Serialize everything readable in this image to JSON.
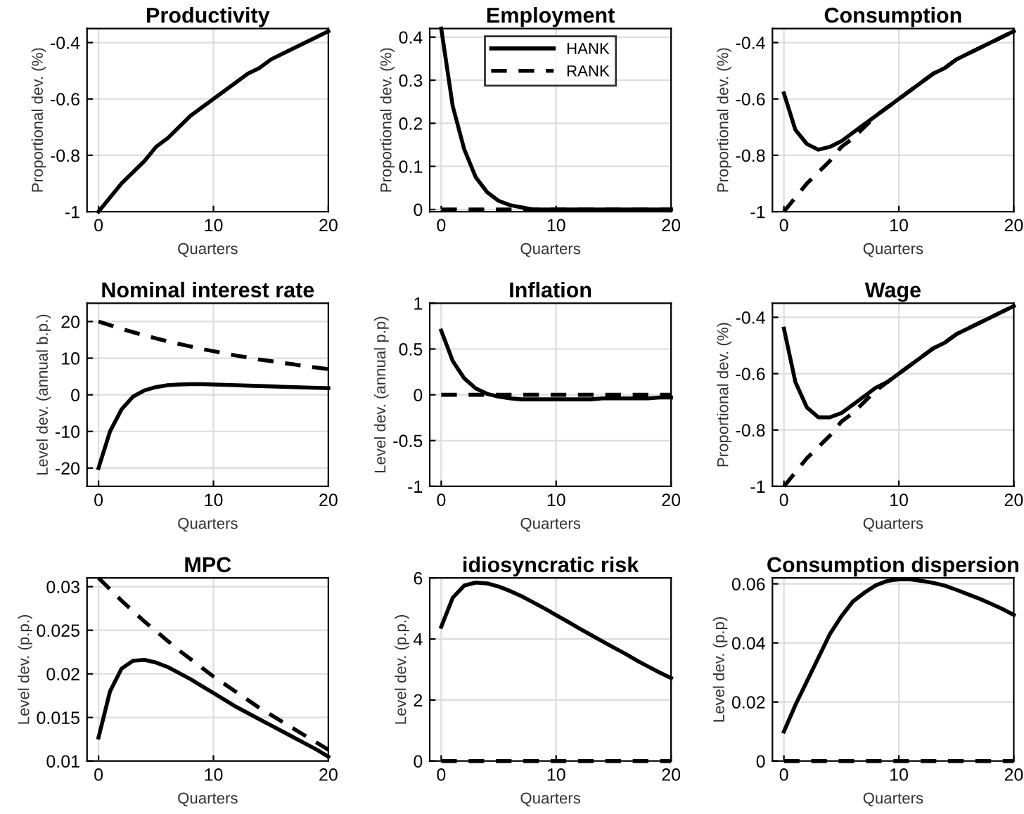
{
  "chart_data": [
    {
      "type": "line",
      "title": "Productivity",
      "xlabel": "Quarters",
      "ylabel": "Proportional dev. (%)",
      "x": [
        0,
        1,
        2,
        3,
        4,
        5,
        6,
        7,
        8,
        9,
        10,
        11,
        12,
        13,
        14,
        15,
        16,
        17,
        18,
        19,
        20
      ],
      "xlim": [
        -1,
        20
      ],
      "xticks": [
        0,
        10,
        20
      ],
      "ylim": [
        -1,
        -0.35
      ],
      "yticks": [
        -1,
        -0.8,
        -0.6,
        -0.4
      ],
      "grid": true,
      "series": [
        {
          "color": "#000000",
          "line_style": "solid",
          "values": [
            -1,
            -0.95,
            -0.9,
            -0.86,
            -0.82,
            -0.77,
            -0.74,
            -0.7,
            -0.66,
            -0.63,
            -0.6,
            -0.57,
            -0.54,
            -0.51,
            -0.49,
            -0.46,
            -0.44,
            -0.42,
            -0.4,
            -0.38,
            -0.36
          ]
        }
      ]
    },
    {
      "type": "line",
      "title": "Employment",
      "xlabel": "Quarters",
      "ylabel": "Proportional dev. (%)",
      "x": [
        0,
        1,
        2,
        3,
        4,
        5,
        6,
        7,
        8,
        9,
        10,
        11,
        12,
        13,
        14,
        15,
        16,
        17,
        18,
        19,
        20
      ],
      "xlim": [
        -1,
        20
      ],
      "xticks": [
        0,
        10,
        20
      ],
      "ylim": [
        -0.005,
        0.42
      ],
      "yticks": [
        0,
        0.1,
        0.2,
        0.3,
        0.4
      ],
      "grid": true,
      "legend": "top",
      "series": [
        {
          "name": "HANK",
          "color": "#000000",
          "line_style": "solid",
          "values": [
            0.42,
            0.24,
            0.14,
            0.075,
            0.04,
            0.02,
            0.01,
            0.005,
            0,
            0,
            0,
            0,
            0,
            0,
            0,
            0,
            0,
            0,
            0,
            0,
            0
          ]
        },
        {
          "name": "RANK",
          "color": "#000000",
          "line_style": "dashed",
          "values": [
            0,
            0,
            0,
            0,
            0,
            0,
            0,
            0,
            0,
            0,
            0,
            0,
            0,
            0,
            0,
            0,
            0,
            0,
            0,
            0,
            0
          ]
        }
      ]
    },
    {
      "type": "line",
      "title": "Consumption",
      "xlabel": "Quarters",
      "ylabel": "Proportional dev. (%)",
      "x": [
        0,
        1,
        2,
        3,
        4,
        5,
        6,
        7,
        8,
        9,
        10,
        11,
        12,
        13,
        14,
        15,
        16,
        17,
        18,
        19,
        20
      ],
      "xlim": [
        -1,
        20
      ],
      "xticks": [
        0,
        10,
        20
      ],
      "ylim": [
        -1,
        -0.35
      ],
      "yticks": [
        -1,
        -0.8,
        -0.6,
        -0.4
      ],
      "grid": true,
      "series": [
        {
          "color": "#000000",
          "line_style": "solid",
          "values": [
            -0.58,
            -0.71,
            -0.76,
            -0.78,
            -0.77,
            -0.75,
            -0.72,
            -0.69,
            -0.66,
            -0.63,
            -0.6,
            -0.57,
            -0.54,
            -0.51,
            -0.49,
            -0.46,
            -0.44,
            -0.42,
            -0.4,
            -0.38,
            -0.36
          ]
        },
        {
          "color": "#000000",
          "line_style": "dashed",
          "values": [
            -1,
            -0.95,
            -0.9,
            -0.86,
            -0.82,
            -0.77,
            -0.74,
            -0.7,
            -0.66,
            -0.63,
            -0.6,
            -0.57,
            -0.54,
            -0.51,
            -0.49,
            -0.46,
            -0.44,
            -0.42,
            -0.4,
            -0.38,
            -0.36
          ]
        }
      ]
    },
    {
      "type": "line",
      "title": "Nominal interest rate",
      "xlabel": "Quarters",
      "ylabel": "Level dev. (annual b.p.)",
      "x": [
        0,
        1,
        2,
        3,
        4,
        5,
        6,
        7,
        8,
        9,
        10,
        11,
        12,
        13,
        14,
        15,
        16,
        17,
        18,
        19,
        20
      ],
      "xlim": [
        -1,
        20
      ],
      "xticks": [
        0,
        10,
        20
      ],
      "ylim": [
        -25,
        25
      ],
      "yticks": [
        -20,
        -10,
        0,
        10,
        20
      ],
      "grid": true,
      "series": [
        {
          "color": "#000000",
          "line_style": "solid",
          "values": [
            -20,
            -10,
            -4,
            -0.5,
            1.2,
            2.1,
            2.6,
            2.8,
            2.9,
            2.9,
            2.8,
            2.7,
            2.6,
            2.5,
            2.4,
            2.3,
            2.2,
            2.1,
            2,
            1.9,
            1.8
          ]
        },
        {
          "color": "#000000",
          "line_style": "dashed",
          "values": [
            20,
            19,
            18,
            17.1,
            16.2,
            15.4,
            14.6,
            13.9,
            13.2,
            12.5,
            11.9,
            11.3,
            10.7,
            10.2,
            9.6,
            9.2,
            8.7,
            8.3,
            7.8,
            7.4,
            7
          ]
        }
      ]
    },
    {
      "type": "line",
      "title": "Inflation",
      "xlabel": "Quarters",
      "ylabel": "Level dev. (annual p.p)",
      "x": [
        0,
        1,
        2,
        3,
        4,
        5,
        6,
        7,
        8,
        9,
        10,
        11,
        12,
        13,
        14,
        15,
        16,
        17,
        18,
        19,
        20
      ],
      "xlim": [
        -1,
        20
      ],
      "xticks": [
        0,
        10,
        20
      ],
      "ylim": [
        -1,
        1
      ],
      "yticks": [
        -1,
        -0.5,
        0,
        0.5,
        1
      ],
      "grid": true,
      "series": [
        {
          "color": "#000000",
          "line_style": "solid",
          "values": [
            0.7,
            0.37,
            0.18,
            0.07,
            0.01,
            -0.02,
            -0.04,
            -0.05,
            -0.05,
            -0.05,
            -0.05,
            -0.05,
            -0.05,
            -0.05,
            -0.04,
            -0.04,
            -0.04,
            -0.04,
            -0.04,
            -0.03,
            -0.03
          ]
        },
        {
          "color": "#000000",
          "line_style": "dashed",
          "values": [
            0,
            0,
            0,
            0,
            0,
            0,
            0,
            0,
            0,
            0,
            0,
            0,
            0,
            0,
            0,
            0,
            0,
            0,
            0,
            0,
            0
          ]
        }
      ]
    },
    {
      "type": "line",
      "title": "Wage",
      "xlabel": "Quarters",
      "ylabel": "Proportional dev. (%)",
      "x": [
        0,
        1,
        2,
        3,
        4,
        5,
        6,
        7,
        8,
        9,
        10,
        11,
        12,
        13,
        14,
        15,
        16,
        17,
        18,
        19,
        20
      ],
      "xlim": [
        -1,
        20
      ],
      "xticks": [
        0,
        10,
        20
      ],
      "ylim": [
        -1,
        -0.35
      ],
      "yticks": [
        -1,
        -0.8,
        -0.6,
        -0.4
      ],
      "grid": true,
      "series": [
        {
          "color": "#000000",
          "line_style": "solid",
          "values": [
            -0.44,
            -0.63,
            -0.72,
            -0.755,
            -0.755,
            -0.74,
            -0.71,
            -0.68,
            -0.65,
            -0.63,
            -0.6,
            -0.57,
            -0.54,
            -0.51,
            -0.49,
            -0.46,
            -0.44,
            -0.42,
            -0.4,
            -0.38,
            -0.36
          ]
        },
        {
          "color": "#000000",
          "line_style": "dashed",
          "values": [
            -1,
            -0.95,
            -0.9,
            -0.86,
            -0.82,
            -0.77,
            -0.74,
            -0.7,
            -0.66,
            -0.63,
            -0.6,
            -0.57,
            -0.54,
            -0.51,
            -0.49,
            -0.46,
            -0.44,
            -0.42,
            -0.4,
            -0.38,
            -0.36
          ]
        }
      ]
    },
    {
      "type": "line",
      "title": "MPC",
      "xlabel": "Quarters",
      "ylabel": "Level dev. (p.p.)",
      "x": [
        0,
        1,
        2,
        3,
        4,
        5,
        6,
        7,
        8,
        9,
        10,
        11,
        12,
        13,
        14,
        15,
        16,
        17,
        18,
        19,
        20
      ],
      "xlim": [
        -1,
        20
      ],
      "xticks": [
        0,
        10,
        20
      ],
      "ylim": [
        0.01,
        0.031
      ],
      "yticks": [
        0.01,
        0.015,
        0.02,
        0.025,
        0.03
      ],
      "grid": true,
      "series": [
        {
          "color": "#000000",
          "line_style": "solid",
          "values": [
            0.0127,
            0.018,
            0.0206,
            0.0215,
            0.0216,
            0.0213,
            0.0208,
            0.0201,
            0.0194,
            0.0186,
            0.0178,
            0.017,
            0.0162,
            0.0155,
            0.0148,
            0.0141,
            0.0134,
            0.0127,
            0.012,
            0.0113,
            0.0105
          ]
        },
        {
          "color": "#000000",
          "line_style": "dashed",
          "values": [
            0.031,
            0.0297,
            0.0284,
            0.0272,
            0.026,
            0.0249,
            0.0238,
            0.0227,
            0.0217,
            0.0207,
            0.0197,
            0.0188,
            0.0179,
            0.017,
            0.0161,
            0.0153,
            0.0145,
            0.0137,
            0.0129,
            0.0121,
            0.0113
          ]
        }
      ]
    },
    {
      "type": "line",
      "title": "idiosyncratic risk",
      "xlabel": "Quarters",
      "ylabel": "Level dev. (p.p.)",
      "x": [
        0,
        1,
        2,
        3,
        4,
        5,
        6,
        7,
        8,
        9,
        10,
        11,
        12,
        13,
        14,
        15,
        16,
        17,
        18,
        19,
        20
      ],
      "xlim": [
        -1,
        20
      ],
      "xticks": [
        0,
        10,
        20
      ],
      "ylim": [
        0,
        6
      ],
      "yticks": [
        0,
        2,
        4,
        6
      ],
      "grid": true,
      "series": [
        {
          "color": "#000000",
          "line_style": "solid",
          "values": [
            4.4,
            5.35,
            5.75,
            5.85,
            5.82,
            5.72,
            5.57,
            5.4,
            5.2,
            5,
            4.78,
            4.57,
            4.35,
            4.14,
            3.93,
            3.72,
            3.52,
            3.3,
            3.1,
            2.9,
            2.72
          ]
        },
        {
          "color": "#000000",
          "line_style": "dashed",
          "values": [
            0,
            0,
            0,
            0,
            0,
            0,
            0,
            0,
            0,
            0,
            0,
            0,
            0,
            0,
            0,
            0,
            0,
            0,
            0,
            0,
            0
          ]
        }
      ]
    },
    {
      "type": "line",
      "title": "Consumption dispersion",
      "xlabel": "Quarters",
      "ylabel": "Level dev. (p.p)",
      "x": [
        0,
        1,
        2,
        3,
        4,
        5,
        6,
        7,
        8,
        9,
        10,
        11,
        12,
        13,
        14,
        15,
        16,
        17,
        18,
        19,
        20
      ],
      "xlim": [
        -1,
        20
      ],
      "xticks": [
        0,
        10,
        20
      ],
      "ylim": [
        0,
        0.062
      ],
      "yticks": [
        0,
        0.02,
        0.04,
        0.06
      ],
      "grid": true,
      "series": [
        {
          "color": "#000000",
          "line_style": "solid",
          "values": [
            0.01,
            0.019,
            0.027,
            0.035,
            0.043,
            0.049,
            0.054,
            0.057,
            0.0595,
            0.061,
            0.0615,
            0.0615,
            0.061,
            0.0603,
            0.0594,
            0.058,
            0.0565,
            0.055,
            0.0533,
            0.0515,
            0.0495
          ]
        },
        {
          "color": "#000000",
          "line_style": "dashed",
          "values": [
            0,
            0,
            0,
            0,
            0,
            0,
            0,
            0,
            0,
            0,
            0,
            0,
            0,
            0,
            0,
            0,
            0,
            0,
            0,
            0,
            0
          ]
        }
      ]
    }
  ]
}
